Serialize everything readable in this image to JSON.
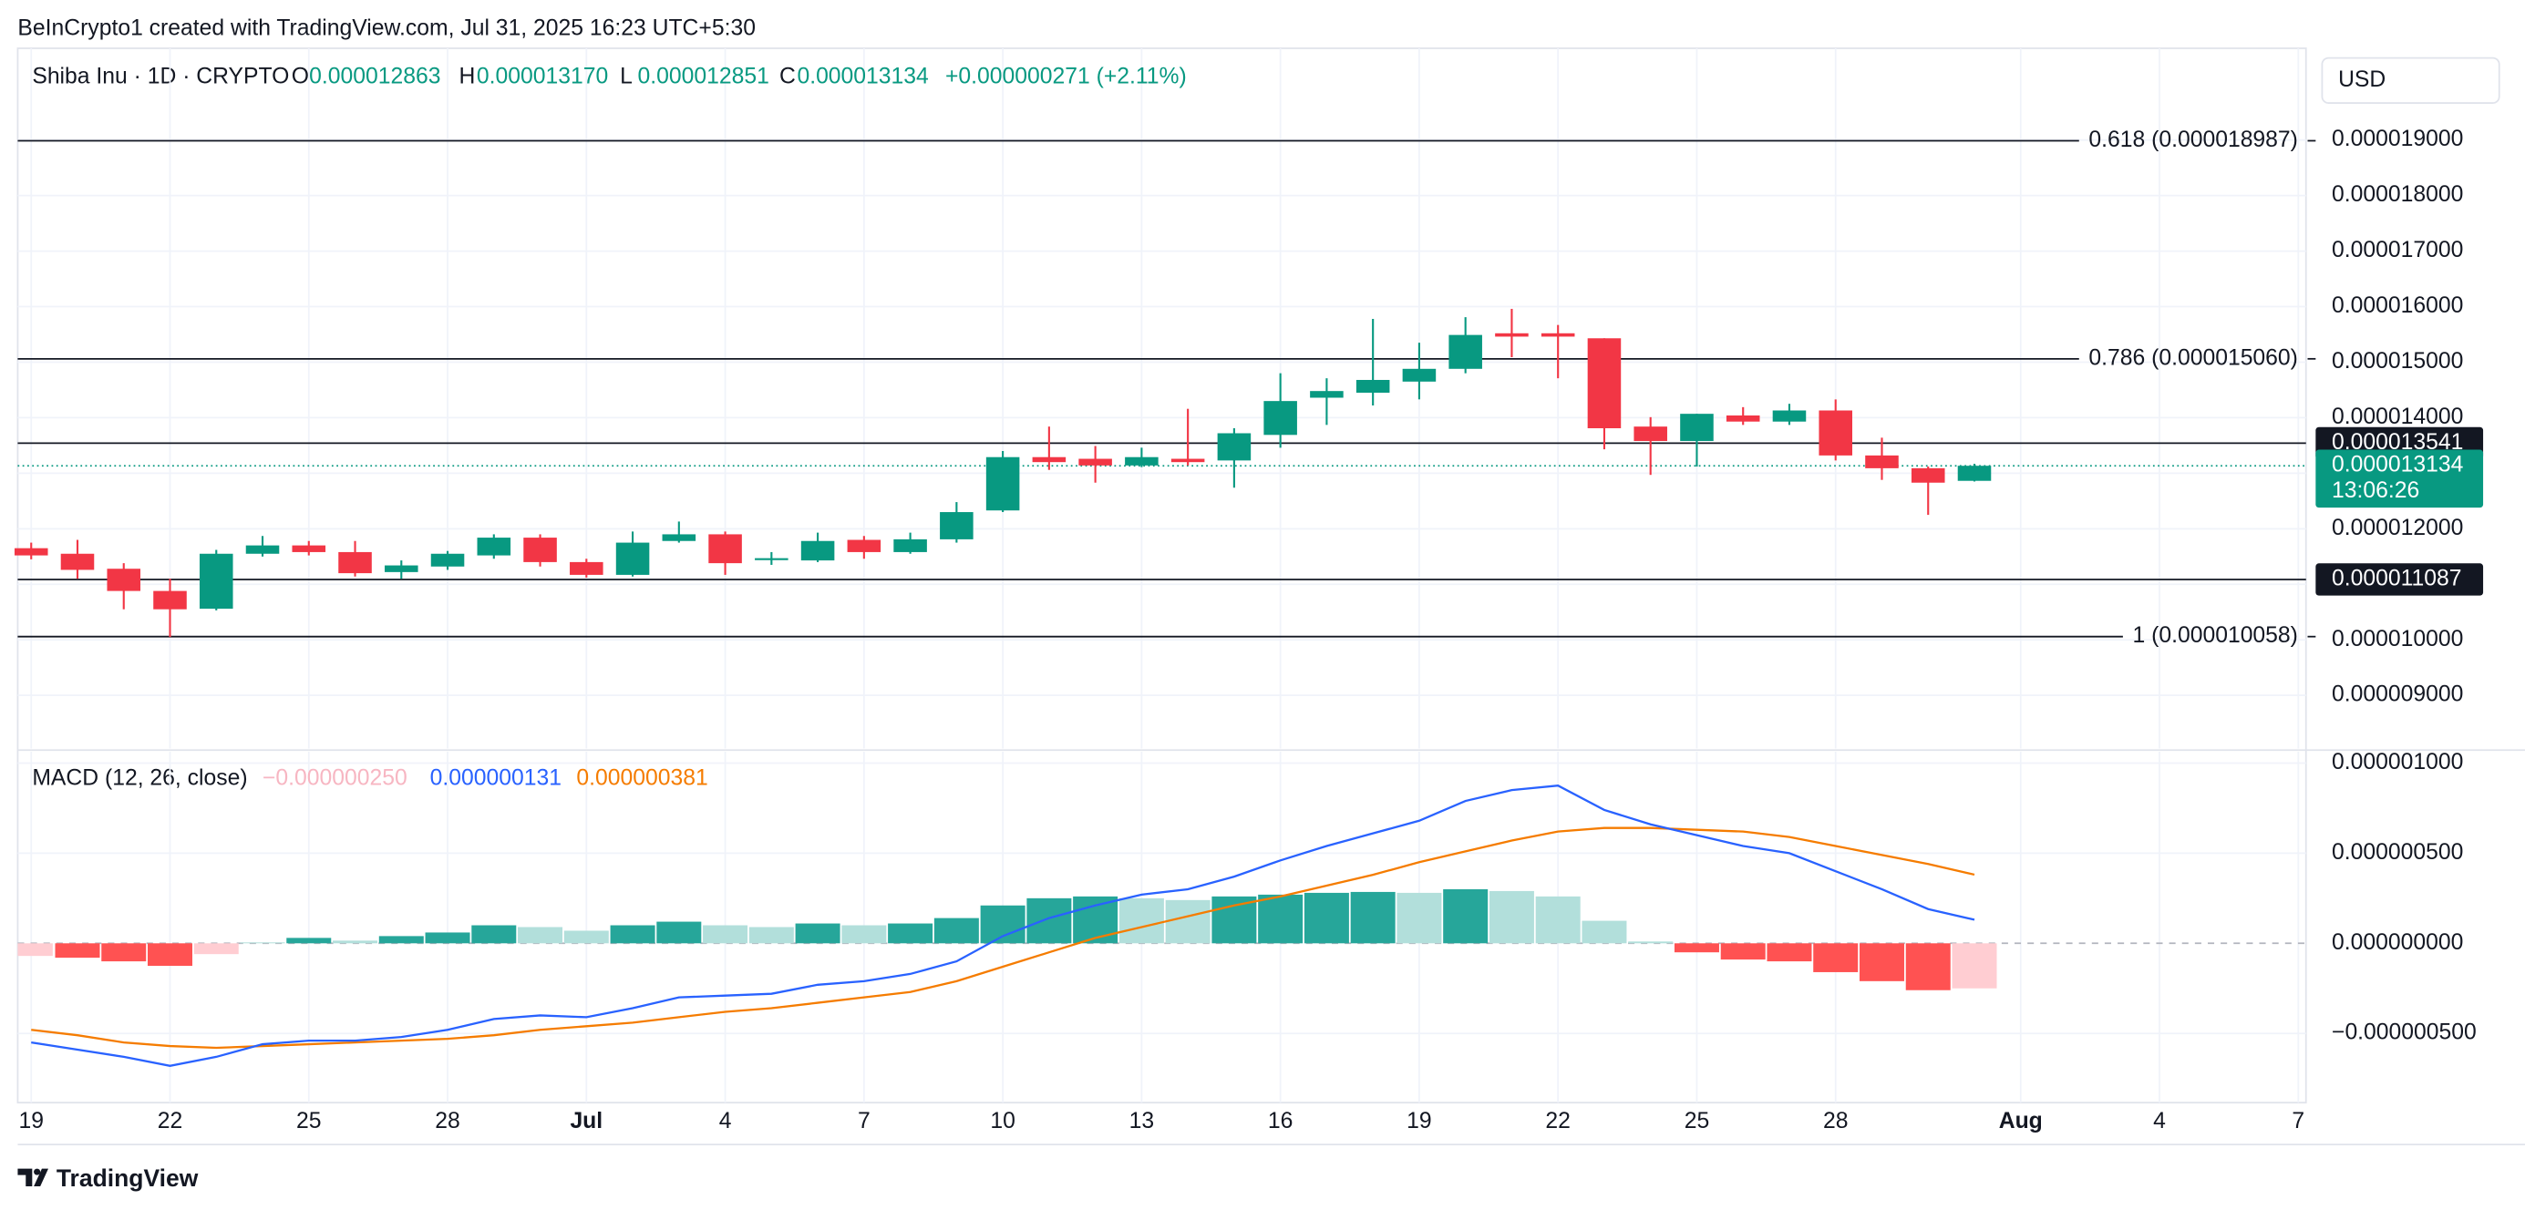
{
  "header": {
    "text": "BeInCrypto1 created with TradingView.com, Jul 31, 2025 16:23 UTC+5:30",
    "currency": "USD"
  },
  "footer": {
    "brand": "TradingView"
  },
  "chart_data": [
    {
      "type": "candlestick",
      "title": "Shiba Inu · 1D · CRYPTO",
      "ohlc_legend": [
        {
          "label": "O",
          "value": "0.000012863"
        },
        {
          "label": "H",
          "value": "0.000013170"
        },
        {
          "label": "L",
          "value": "0.000012851"
        },
        {
          "label": "C",
          "value": "0.000013134"
        }
      ],
      "change": "+0.000000271 (+2.11%)",
      "up_color": "#089981",
      "down_color": "#f23645",
      "x": [
        "2025-06-19",
        "2025-06-20",
        "2025-06-21",
        "2025-06-22",
        "2025-06-23",
        "2025-06-24",
        "2025-06-25",
        "2025-06-26",
        "2025-06-27",
        "2025-06-28",
        "2025-06-29",
        "2025-06-30",
        "2025-07-01",
        "2025-07-02",
        "2025-07-03",
        "2025-07-04",
        "2025-07-05",
        "2025-07-06",
        "2025-07-07",
        "2025-07-08",
        "2025-07-09",
        "2025-07-10",
        "2025-07-11",
        "2025-07-12",
        "2025-07-13",
        "2025-07-14",
        "2025-07-15",
        "2025-07-16",
        "2025-07-17",
        "2025-07-18",
        "2025-07-19",
        "2025-07-20",
        "2025-07-21",
        "2025-07-22",
        "2025-07-23",
        "2025-07-24",
        "2025-07-25",
        "2025-07-26",
        "2025-07-27",
        "2025-07-28",
        "2025-07-29",
        "2025-07-30",
        "2025-07-31"
      ],
      "open": [
        1.165e-05,
        1.155e-05,
        1.128e-05,
        1.088e-05,
        1.056e-05,
        1.155e-05,
        1.17e-05,
        1.158e-05,
        1.122e-05,
        1.132e-05,
        1.152e-05,
        1.184e-05,
        1.14e-05,
        1.117e-05,
        1.178e-05,
        1.19e-05,
        1.145e-05,
        1.143e-05,
        1.18e-05,
        1.158e-05,
        1.181e-05,
        1.233e-05,
        1.329e-05,
        1.326e-05,
        1.314e-05,
        1.326e-05,
        1.323e-05,
        1.369e-05,
        1.436e-05,
        1.445e-05,
        1.465e-05,
        1.488e-05,
        1.552e-05,
        1.552e-05,
        1.543e-05,
        1.384e-05,
        1.358e-05,
        1.404e-05,
        1.393e-05,
        1.413e-05,
        1.332e-05,
        1.309e-05,
        1.2863e-05
      ],
      "high": [
        1.175e-05,
        1.18e-05,
        1.138e-05,
        1.11e-05,
        1.162e-05,
        1.187e-05,
        1.178e-05,
        1.178e-05,
        1.143e-05,
        1.16e-05,
        1.19e-05,
        1.19e-05,
        1.146e-05,
        1.195e-05,
        1.213e-05,
        1.195e-05,
        1.158e-05,
        1.193e-05,
        1.187e-05,
        1.193e-05,
        1.248e-05,
        1.34e-05,
        1.384e-05,
        1.349e-05,
        1.346e-05,
        1.416e-05,
        1.381e-05,
        1.48e-05,
        1.471e-05,
        1.578e-05,
        1.535e-05,
        1.581e-05,
        1.596e-05,
        1.567e-05,
        1.543e-05,
        1.401e-05,
        1.407e-05,
        1.419e-05,
        1.425e-05,
        1.433e-05,
        1.364e-05,
        1.312e-05,
        1.317e-05
      ],
      "low": [
        1.145e-05,
        1.11e-05,
        1.055e-05,
        1.005e-05,
        1.053e-05,
        1.15e-05,
        1.152e-05,
        1.114e-05,
        1.11e-05,
        1.126e-05,
        1.146e-05,
        1.132e-05,
        1.112e-05,
        1.114e-05,
        1.175e-05,
        1.117e-05,
        1.135e-05,
        1.14e-05,
        1.146e-05,
        1.155e-05,
        1.175e-05,
        1.23e-05,
        1.306e-05,
        1.283e-05,
        1.311e-05,
        1.314e-05,
        1.274e-05,
        1.346e-05,
        1.387e-05,
        1.422e-05,
        1.433e-05,
        1.48e-05,
        1.509e-05,
        1.471e-05,
        1.343e-05,
        1.297e-05,
        1.312e-05,
        1.387e-05,
        1.387e-05,
        1.323e-05,
        1.288e-05,
        1.225e-05,
        1.2851e-05
      ],
      "close": [
        1.152e-05,
        1.126e-05,
        1.088e-05,
        1.055e-05,
        1.155e-05,
        1.17e-05,
        1.158e-05,
        1.12e-05,
        1.134e-05,
        1.155e-05,
        1.184e-05,
        1.14e-05,
        1.117e-05,
        1.175e-05,
        1.19e-05,
        1.138e-05,
        1.147e-05,
        1.178e-05,
        1.158e-05,
        1.181e-05,
        1.23e-05,
        1.329e-05,
        1.32e-05,
        1.314e-05,
        1.329e-05,
        1.32e-05,
        1.372e-05,
        1.43e-05,
        1.448e-05,
        1.468e-05,
        1.488e-05,
        1.549e-05,
        1.546e-05,
        1.546e-05,
        1.381e-05,
        1.358e-05,
        1.407e-05,
        1.393e-05,
        1.413e-05,
        1.332e-05,
        1.309e-05,
        1.283e-05,
        1.3134e-05
      ],
      "xlim": [
        "2025-06-18T17:00:00Z",
        "2025-08-07T04:00:00Z"
      ],
      "ylim": [
        8.043e-06,
        2.0652e-05
      ],
      "yticks": [
        {
          "value": 9e-06,
          "label": "0.000009000"
        },
        {
          "value": 1e-05,
          "label": "0.000010000"
        },
        {
          "value": 1.1e-05,
          "label": "0.000011000"
        },
        {
          "value": 1.2e-05,
          "label": "0.000012000"
        },
        {
          "value": 1.3e-05,
          "label": "0.000013000"
        },
        {
          "value": 1.4e-05,
          "label": "0.000014000"
        },
        {
          "value": 1.5e-05,
          "label": "0.000015000"
        },
        {
          "value": 1.6e-05,
          "label": "0.000016000"
        },
        {
          "value": 1.7e-05,
          "label": "0.000017000"
        },
        {
          "value": 1.8e-05,
          "label": "0.000018000"
        },
        {
          "value": 1.9e-05,
          "label": "0.000019000"
        }
      ],
      "fib_levels": [
        {
          "value": 1.8987e-05,
          "label": "0.618 (0.000018987)"
        },
        {
          "value": 1.506e-05,
          "label": "0.786 (0.000015060)"
        },
        {
          "value": 1.0058e-05,
          "label": "1 (0.000010058)"
        }
      ],
      "hlines": [
        {
          "value": 1.3541e-05,
          "label": "0.000013541"
        },
        {
          "value": 1.1087e-05,
          "label": "0.000011087"
        }
      ],
      "last_price": {
        "value": 1.3134e-05,
        "label": "0.000013134",
        "countdown": "13:06:26",
        "color": "#089981"
      },
      "grid": true
    },
    {
      "type": "macd",
      "title": "MACD (12, 26, close)",
      "legend": [
        {
          "value": "−0.000000250",
          "color": "#f7b6c2"
        },
        {
          "value": "0.000000131",
          "color": "#2962ff"
        },
        {
          "value": "0.000000381",
          "color": "#f57c00"
        }
      ],
      "histogram": {
        "values": [
          -7e-08,
          -8e-08,
          -1e-07,
          -1.25e-07,
          -6e-08,
          5e-09,
          3e-08,
          1.5e-08,
          4e-08,
          6e-08,
          1e-07,
          9e-08,
          7e-08,
          1e-07,
          1.2e-07,
          1e-07,
          9e-08,
          1.1e-07,
          1e-07,
          1.1e-07,
          1.4e-07,
          2.1e-07,
          2.5e-07,
          2.6e-07,
          2.5e-07,
          2.4e-07,
          2.6e-07,
          2.7e-07,
          2.8e-07,
          2.85e-07,
          2.8e-07,
          3e-07,
          2.9e-07,
          2.6e-07,
          1.25e-07,
          1e-08,
          -5e-08,
          -9e-08,
          -1e-07,
          -1.6e-07,
          -2.1e-07,
          -2.6e-07,
          -2.5e-07
        ],
        "colors": [
          "#ffcdd2",
          "#ff5252",
          "#ff5252",
          "#ff5252",
          "#ffcdd2",
          "#b2dfdb",
          "#26a69a",
          "#b2dfdb",
          "#26a69a",
          "#26a69a",
          "#26a69a",
          "#b2dfdb",
          "#b2dfdb",
          "#26a69a",
          "#26a69a",
          "#b2dfdb",
          "#b2dfdb",
          "#26a69a",
          "#b2dfdb",
          "#26a69a",
          "#26a69a",
          "#26a69a",
          "#26a69a",
          "#26a69a",
          "#b2dfdb",
          "#b2dfdb",
          "#26a69a",
          "#26a69a",
          "#26a69a",
          "#26a69a",
          "#b2dfdb",
          "#26a69a",
          "#b2dfdb",
          "#b2dfdb",
          "#b2dfdb",
          "#b2dfdb",
          "#ff5252",
          "#ff5252",
          "#ff5252",
          "#ff5252",
          "#ff5252",
          "#ff5252",
          "#ffcdd2"
        ]
      },
      "macd": {
        "color": "#2962ff",
        "values": [
          -5.5e-07,
          -5.9e-07,
          -6.3e-07,
          -6.8e-07,
          -6.3e-07,
          -5.6e-07,
          -5.4e-07,
          -5.4e-07,
          -5.2e-07,
          -4.8e-07,
          -4.2e-07,
          -4e-07,
          -4.1e-07,
          -3.6e-07,
          -3e-07,
          -2.9e-07,
          -2.8e-07,
          -2.3e-07,
          -2.1e-07,
          -1.7e-07,
          -1e-07,
          4e-08,
          1.4e-07,
          2.1e-07,
          2.7e-07,
          3e-07,
          3.7e-07,
          4.6e-07,
          5.4e-07,
          6.1e-07,
          6.8e-07,
          7.9e-07,
          8.5e-07,
          8.75e-07,
          7.4e-07,
          6.6e-07,
          6e-07,
          5.4e-07,
          5e-07,
          4e-07,
          3e-07,
          1.9e-07,
          1.31e-07
        ]
      },
      "signal": {
        "color": "#f57c00",
        "values": [
          -4.8e-07,
          -5.1e-07,
          -5.5e-07,
          -5.7e-07,
          -5.8e-07,
          -5.7e-07,
          -5.6e-07,
          -5.5e-07,
          -5.4e-07,
          -5.3e-07,
          -5.1e-07,
          -4.8e-07,
          -4.6e-07,
          -4.4e-07,
          -4.1e-07,
          -3.8e-07,
          -3.6e-07,
          -3.3e-07,
          -3e-07,
          -2.7e-07,
          -2.1e-07,
          -1.3e-07,
          -5e-08,
          3e-08,
          9e-08,
          1.5e-07,
          2.1e-07,
          2.6e-07,
          3.2e-07,
          3.8e-07,
          4.5e-07,
          5.1e-07,
          5.7e-07,
          6.2e-07,
          6.4e-07,
          6.4e-07,
          6.3e-07,
          6.2e-07,
          5.9e-07,
          5.4e-07,
          4.9e-07,
          4.4e-07,
          3.81e-07
        ]
      },
      "ylim": [
        -8.84e-07,
        1.063e-06
      ],
      "yticks": [
        {
          "value": -5e-07,
          "label": "−0.000000500"
        },
        {
          "value": 0,
          "label": "0.000000000"
        },
        {
          "value": 5e-07,
          "label": "0.000000500"
        },
        {
          "value": 1e-06,
          "label": "0.000001000"
        }
      ],
      "xticks": [
        {
          "value": "2025-06-19",
          "label": "19"
        },
        {
          "value": "2025-06-22",
          "label": "22"
        },
        {
          "value": "2025-06-25",
          "label": "25"
        },
        {
          "value": "2025-06-28",
          "label": "28"
        },
        {
          "value": "2025-07-01",
          "label": "Jul"
        },
        {
          "value": "2025-07-04",
          "label": "4"
        },
        {
          "value": "2025-07-07",
          "label": "7"
        },
        {
          "value": "2025-07-10",
          "label": "10"
        },
        {
          "value": "2025-07-13",
          "label": "13"
        },
        {
          "value": "2025-07-16",
          "label": "16"
        },
        {
          "value": "2025-07-19",
          "label": "19"
        },
        {
          "value": "2025-07-22",
          "label": "22"
        },
        {
          "value": "2025-07-25",
          "label": "25"
        },
        {
          "value": "2025-07-28",
          "label": "28"
        },
        {
          "value": "2025-08-01",
          "label": "Aug"
        },
        {
          "value": "2025-08-04",
          "label": "4"
        },
        {
          "value": "2025-08-07",
          "label": "7"
        }
      ]
    }
  ]
}
